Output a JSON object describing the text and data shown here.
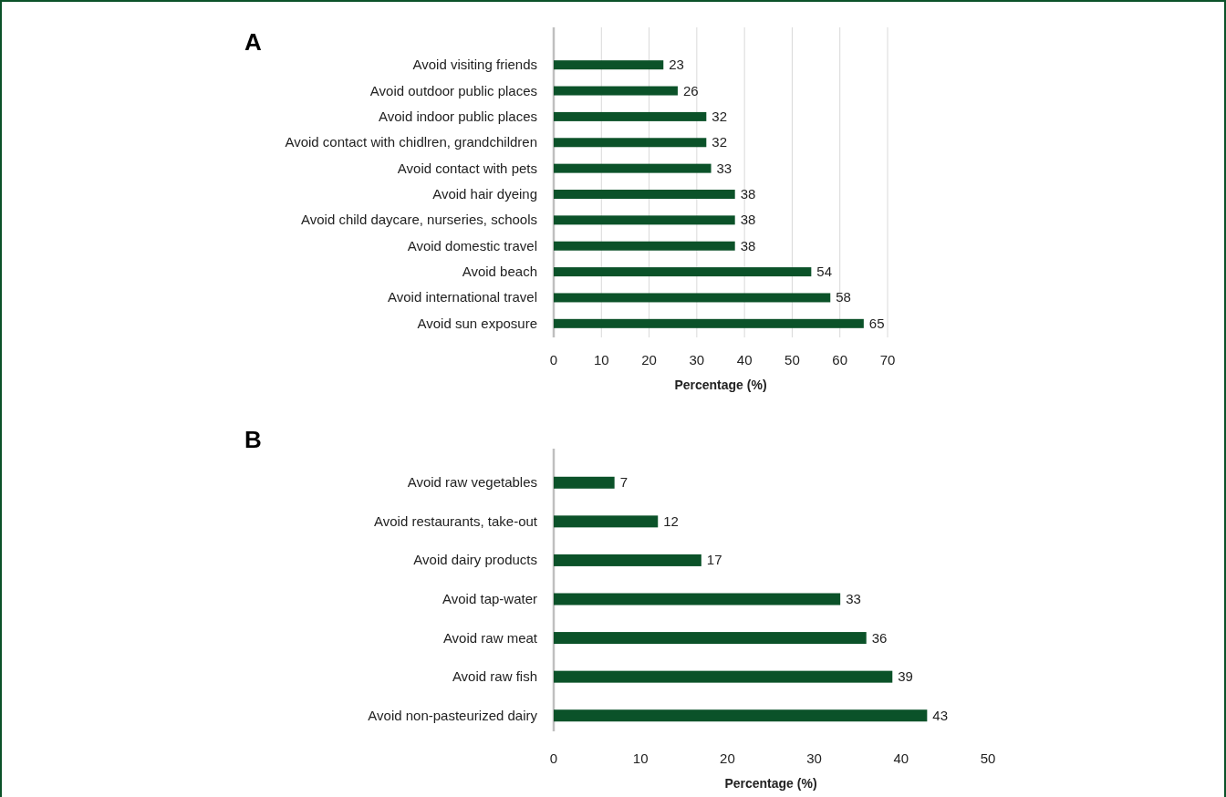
{
  "chart_data": [
    {
      "type": "bar",
      "orientation": "horizontal",
      "title": "A",
      "xlabel": "Percentage (%)",
      "categories": [
        "Avoid visiting friends",
        "Avoid outdoor public places",
        "Avoid indoor public places",
        "Avoid contact with chidlren, grandchildren",
        "Avoid contact with pets",
        "Avoid hair dyeing",
        "Avoid child daycare, nurseries, schools",
        "Avoid domestic travel",
        "Avoid beach",
        "Avoid international travel",
        "Avoid sun exposure"
      ],
      "values": [
        23,
        26,
        32,
        32,
        33,
        38,
        38,
        38,
        54,
        58,
        65
      ],
      "color": "#0b5229",
      "xlim": [
        0,
        70
      ],
      "xticks": [
        0,
        10,
        20,
        30,
        40,
        50,
        60,
        70
      ],
      "grid": "x",
      "data_labels": true
    },
    {
      "type": "bar",
      "orientation": "horizontal",
      "title": "B",
      "xlabel": "Percentage (%)",
      "categories": [
        "Avoid raw vegetables",
        "Avoid restaurants, take-out",
        "Avoid dairy products",
        "Avoid tap-water",
        "Avoid raw meat",
        "Avoid raw fish",
        "Avoid non-pasteurized dairy"
      ],
      "values": [
        7,
        12,
        17,
        33,
        36,
        39,
        43
      ],
      "color": "#0b5229",
      "xlim": [
        0,
        50
      ],
      "xticks": [
        0,
        10,
        20,
        30,
        40,
        50
      ],
      "grid": false,
      "data_labels": true
    }
  ]
}
